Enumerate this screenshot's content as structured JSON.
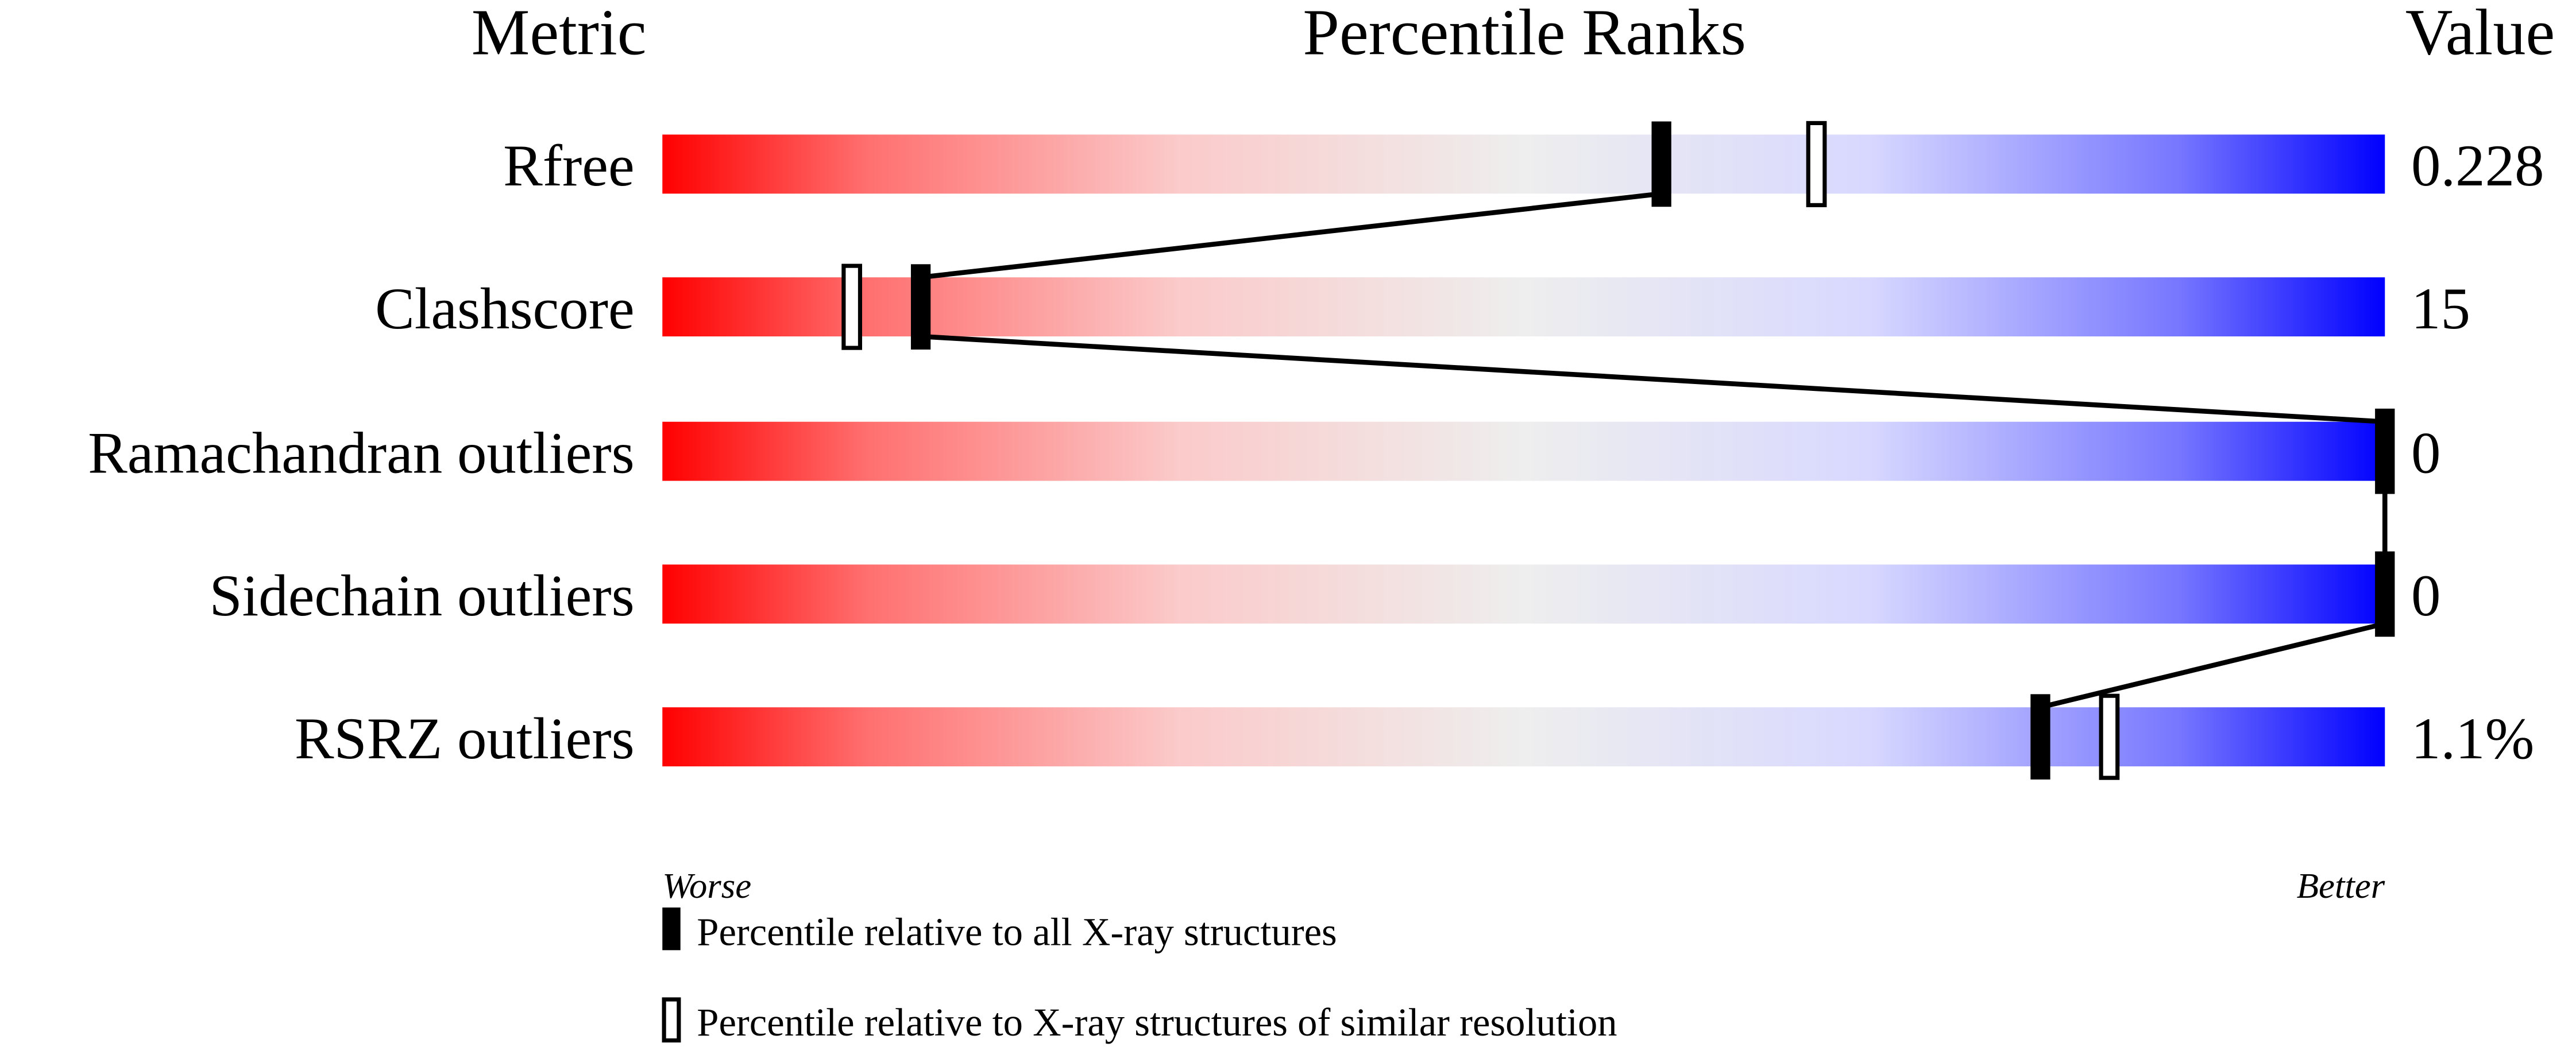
{
  "chart_data": {
    "type": "percentile-slider",
    "headers": {
      "metric": "Metric",
      "ranks": "Percentile Ranks",
      "value": "Value"
    },
    "xlim": [
      0,
      100
    ],
    "rows": [
      {
        "metric": "Rfree",
        "value": "0.228",
        "percentile_all": 58,
        "percentile_similar": 67
      },
      {
        "metric": "Clashscore",
        "value": "15",
        "percentile_all": 15,
        "percentile_similar": 11
      },
      {
        "metric": "Ramachandran outliers",
        "value": "0",
        "percentile_all": 100,
        "percentile_similar": null
      },
      {
        "metric": "Sidechain outliers",
        "value": "0",
        "percentile_all": 100,
        "percentile_similar": null
      },
      {
        "metric": "RSRZ outliers",
        "value": "1.1%",
        "percentile_all": 80,
        "percentile_similar": 84
      }
    ],
    "axis": {
      "worse": "Worse",
      "better": "Better"
    },
    "legend": {
      "all": "Percentile relative to all X-ray structures",
      "similar": "Percentile relative to X-ray structures of similar resolution"
    },
    "colors": {
      "worse": "#ff0000",
      "middle": "#eeeeee",
      "better": "#0000ff",
      "marker": "#000000"
    }
  }
}
